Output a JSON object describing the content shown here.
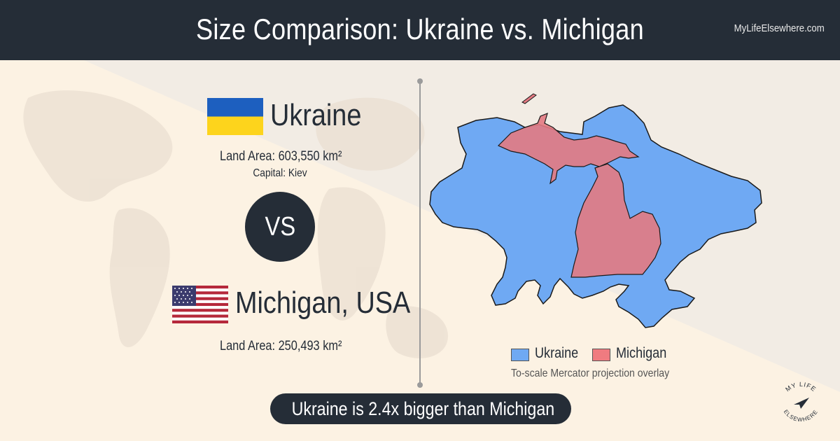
{
  "header": {
    "title": "Size Comparison: Ukraine vs. Michigan",
    "site": "MyLifeElsewhere.com"
  },
  "country_a": {
    "name": "Ukraine",
    "flag": "ukraine-flag",
    "land_area": "Land Area: 603,550 km²",
    "capital": "Capital: Kiev",
    "color": "#6fa9f3"
  },
  "vs": "VS",
  "country_b": {
    "name": "Michigan, USA",
    "flag": "usa-flag",
    "land_area": "Land Area: 250,493 km²",
    "color": "#e37a82"
  },
  "legend": {
    "a_label": "Ukraine",
    "b_label": "Michigan",
    "note": "To-scale Mercator projection overlay"
  },
  "result": "Ukraine is 2.4x bigger than Michigan",
  "logo": {
    "text_top": "MY LIFE",
    "text_bottom": "ELSEWHERE",
    "icon": "paper-plane-icon"
  },
  "colors": {
    "header_bg": "#252d37",
    "ukraine_fill": "#6fa9f3",
    "michigan_fill": "#e37a82",
    "background": "#fbf3e6"
  }
}
